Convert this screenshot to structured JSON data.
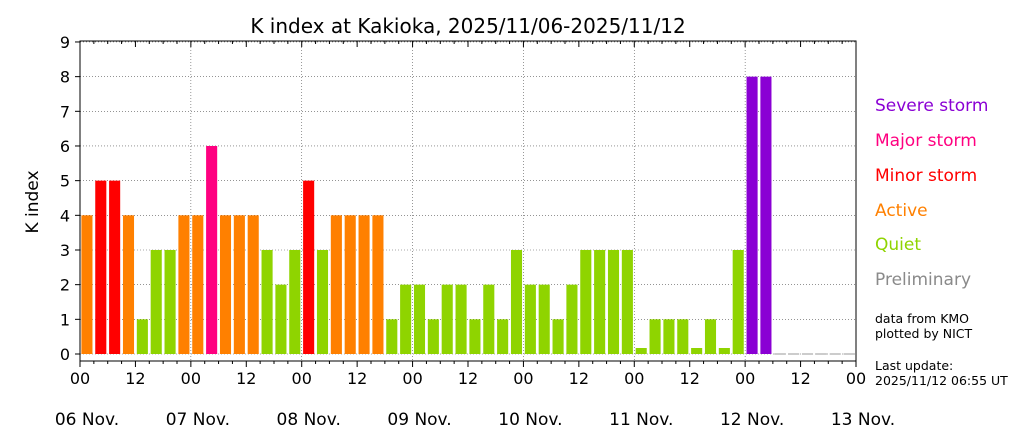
{
  "chart_data": {
    "type": "bar",
    "title": "K index at Kakioka, 2025/11/06-2025/11/12",
    "ylabel": "K index",
    "xlabel": "",
    "ylim": [
      0,
      9
    ],
    "y_ticks": [
      "0",
      "1",
      "2",
      "3",
      "4",
      "5",
      "6",
      "7",
      "8",
      "9"
    ],
    "x_range_hours": [
      0,
      168
    ],
    "hour_ticks": [
      "00",
      "12",
      "00",
      "12",
      "00",
      "12",
      "00",
      "12",
      "00",
      "12",
      "00",
      "12",
      "00",
      "12",
      "00"
    ],
    "date_labels": [
      "06 Nov.",
      "07 Nov.",
      "08 Nov.",
      "09 Nov.",
      "10 Nov.",
      "11 Nov.",
      "12 Nov.",
      "13 Nov."
    ],
    "interval_hours": 3,
    "grid": true,
    "values": [
      4,
      5,
      5,
      4,
      1,
      3,
      3,
      4,
      4,
      6,
      4,
      4,
      4,
      3,
      2,
      3,
      5,
      3,
      4,
      4,
      4,
      4,
      1,
      2,
      2,
      1,
      2,
      2,
      1,
      2,
      1,
      3,
      2,
      2,
      1,
      2,
      3,
      3,
      3,
      3,
      0,
      1,
      1,
      1,
      0,
      1,
      0,
      3,
      8,
      8
    ],
    "empty_interval_value": 0,
    "legend": [
      {
        "label": "Severe storm",
        "color": "#8a00d4"
      },
      {
        "label": "Major storm",
        "color": "#ff0080"
      },
      {
        "label": "Minor storm",
        "color": "#ff0000"
      },
      {
        "label": "Active",
        "color": "#ff8000"
      },
      {
        "label": "Quiet",
        "color": "#8fd400"
      },
      {
        "label": "Preliminary",
        "color": "#8a8a8a"
      }
    ],
    "legend_position": "right"
  },
  "notes": {
    "source_line1": "data from KMO",
    "source_line2": "plotted by NICT",
    "update_line1": "Last update:",
    "update_line2": "2025/11/12 06:55 UT"
  }
}
